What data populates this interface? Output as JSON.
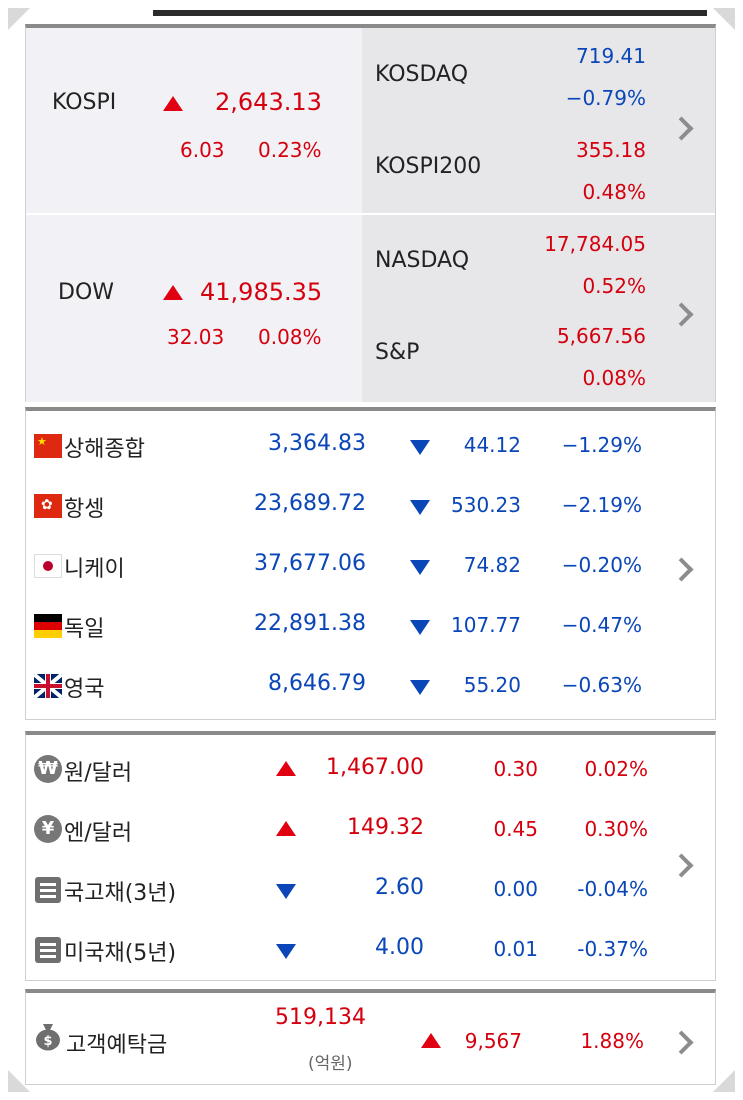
{
  "domestic": {
    "kospi": {
      "name": "KOSPI",
      "value": "2,643.13",
      "change": "6.03",
      "pct": "0.23%"
    },
    "kosdaq": {
      "name": "KOSDAQ",
      "value": "719.41",
      "pct": "−0.79%"
    },
    "kospi200": {
      "name": "KOSPI200",
      "value": "355.18",
      "pct": "0.48%"
    },
    "dow": {
      "name": "DOW",
      "value": "41,985.35",
      "change": "32.03",
      "pct": "0.08%"
    },
    "nasdaq": {
      "name": "NASDAQ",
      "value": "17,784.05",
      "pct": "0.52%"
    },
    "sp": {
      "name": "S&P",
      "value": "5,667.56",
      "pct": "0.08%"
    }
  },
  "global": [
    {
      "name": "상해종합",
      "value": "3,364.83",
      "change": "44.12",
      "pct": "−1.29%",
      "flag": "china-flag-icon"
    },
    {
      "name": "항셍",
      "value": "23,689.72",
      "change": "530.23",
      "pct": "−2.19%",
      "flag": "hongkong-flag-icon"
    },
    {
      "name": "니케이",
      "value": "37,677.06",
      "change": "74.82",
      "pct": "−0.20%",
      "flag": "japan-flag-icon"
    },
    {
      "name": "독일",
      "value": "22,891.38",
      "change": "107.77",
      "pct": "−0.47%",
      "flag": "germany-flag-icon"
    },
    {
      "name": "영국",
      "value": "8,646.79",
      "change": "55.20",
      "pct": "−0.63%",
      "flag": "uk-flag-icon"
    }
  ],
  "fx": [
    {
      "name": "원/달러",
      "icon": "won-icon",
      "glyph": "₩",
      "value": "1,467.00",
      "change": "0.30",
      "pct": "0.02%"
    },
    {
      "name": "엔/달러",
      "icon": "yen-icon",
      "glyph": "¥",
      "value": "149.32",
      "change": "0.45",
      "pct": "0.30%"
    },
    {
      "name": "국고채(3년)",
      "icon": "bond-icon",
      "value": "2.60",
      "change": "0.00",
      "pct": "-0.04%"
    },
    {
      "name": "미국채(5년)",
      "icon": "bond-icon",
      "value": "4.00",
      "change": "0.01",
      "pct": "-0.37%"
    }
  ],
  "deposit": {
    "name": "고객예탁금",
    "value": "519,134",
    "unit": "(억원)",
    "change": "9,567",
    "pct": "1.88%",
    "icon": "money-bag-icon"
  },
  "colors": {
    "up": "#d5000e",
    "down": "#0a46b8",
    "panel_left": "#f2f2f6",
    "panel_right": "#e7e7ea"
  }
}
